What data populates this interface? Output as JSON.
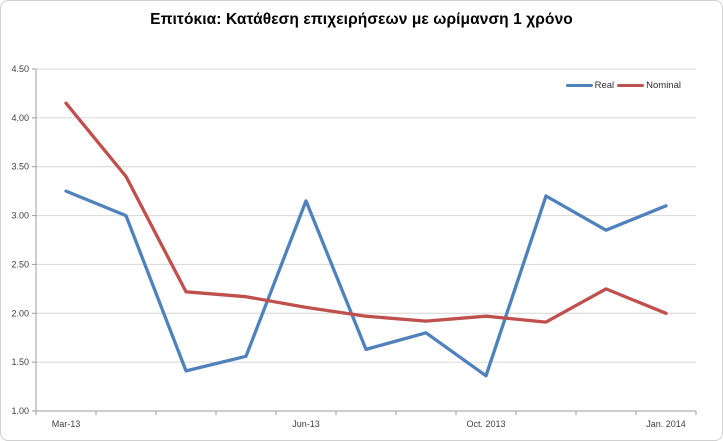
{
  "title": "Επιτόκια: Κατάθεση επιχειρήσεων με ωρίμανση 1 χρόνο",
  "chart_data": {
    "type": "line",
    "title": "Επιτόκια: Κατάθεση επιχειρήσεων με ωρίμανση 1 χρόνο",
    "n_points": 11,
    "x_axis": {
      "visible_tick_labels": [
        {
          "label": "Mar-13",
          "position_index": 0
        },
        {
          "label": "Jun-13",
          "position_index": 4
        },
        {
          "label": "Oct. 2013",
          "position_index": 7
        },
        {
          "label": "Jan. 2014",
          "position_index": 10
        }
      ]
    },
    "series": [
      {
        "name": "Real",
        "color": "#4F81BD",
        "values": [
          3.25,
          3.0,
          1.41,
          1.56,
          3.15,
          1.63,
          1.8,
          1.36,
          3.2,
          2.85,
          3.1
        ]
      },
      {
        "name": "Nominal",
        "color": "#C0504D",
        "values": [
          4.15,
          3.4,
          2.22,
          2.17,
          2.06,
          1.97,
          1.92,
          1.97,
          1.91,
          2.25,
          2.0
        ]
      }
    ],
    "ylim": [
      1.0,
      4.5
    ],
    "ytick_step": 0.5,
    "y_tick_labels": [
      "4.50",
      "4.00",
      "3.50",
      "3.00",
      "2.50",
      "2.00",
      "1.50",
      "1.00"
    ],
    "grid": true,
    "legend_position": "top-right"
  },
  "colors": {
    "grid": "#d6d6d6",
    "axis": "#9c9c9c",
    "tick_text": "#3f3f3f",
    "frame_border": "#cfcfcf"
  }
}
